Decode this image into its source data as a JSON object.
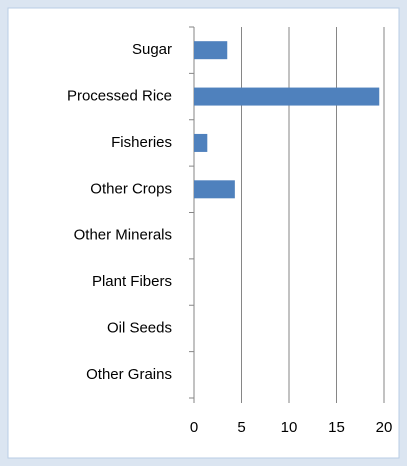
{
  "chart_data": {
    "type": "bar",
    "orientation": "horizontal",
    "categories": [
      "Sugar",
      "Processed Rice",
      "Fisheries",
      "Other Crops",
      "Other Minerals",
      "Plant Fibers",
      "Oil Seeds",
      "Other Grains"
    ],
    "values": [
      3.5,
      19.5,
      1.4,
      4.3,
      0,
      0,
      0,
      0
    ],
    "color": "#4f81bd",
    "xlim": [
      0,
      20
    ],
    "xticks": [
      0,
      5,
      10,
      15,
      20
    ],
    "grid": true
  }
}
